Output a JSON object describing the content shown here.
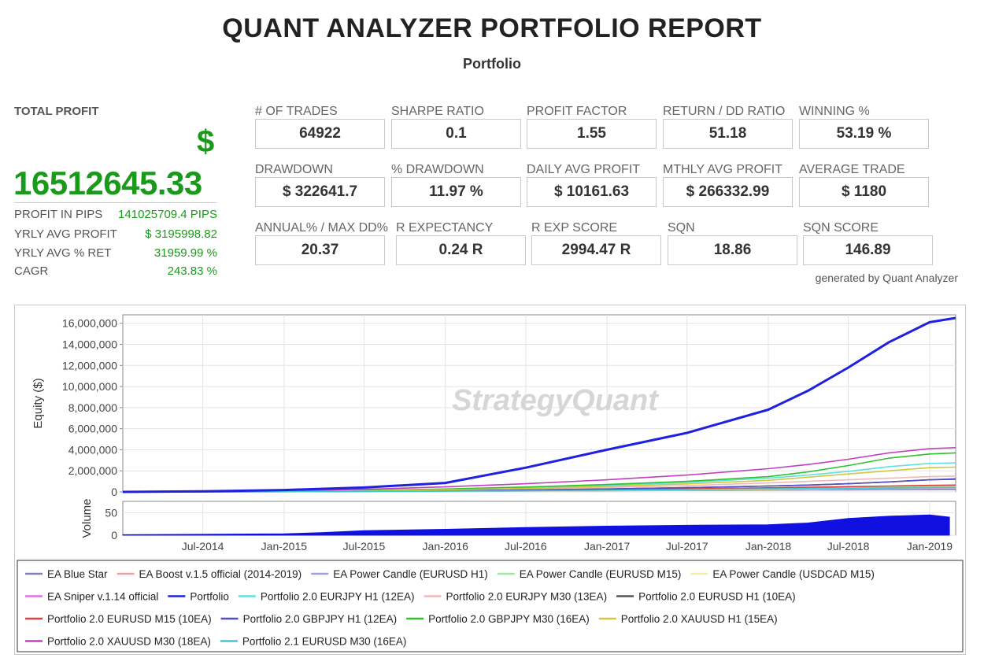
{
  "header": {
    "title": "QUANT ANALYZER PORTFOLIO REPORT",
    "subtitle": "Portfolio"
  },
  "total_profit": {
    "label": "TOTAL PROFIT",
    "currency_symbol": "$",
    "value": "16512645.33",
    "rows": [
      {
        "label": "PROFIT IN PIPS",
        "value": "141025709.4 PIPS"
      },
      {
        "label": "YRLY AVG PROFIT",
        "value": "$ 3195998.82"
      },
      {
        "label": "YRLY AVG % RET",
        "value": "31959.99 %"
      },
      {
        "label": "CAGR",
        "value": "243.83 %"
      }
    ]
  },
  "metrics": [
    {
      "label": "# OF TRADES",
      "value": "64922"
    },
    {
      "label": "SHARPE RATIO",
      "value": "0.1"
    },
    {
      "label": "PROFIT FACTOR",
      "value": "1.55"
    },
    {
      "label": "RETURN / DD RATIO",
      "value": "51.18"
    },
    {
      "label": "WINNING %",
      "value": "53.19 %"
    },
    {
      "label": "DRAWDOWN",
      "value": "$ 322641.7"
    },
    {
      "label": "% DRAWDOWN",
      "value": "11.97 %"
    },
    {
      "label": "DAILY AVG PROFIT",
      "value": "$ 10161.63"
    },
    {
      "label": "MTHLY AVG PROFIT",
      "value": "$ 266332.99"
    },
    {
      "label": "AVERAGE TRADE",
      "value": "$ 1180"
    },
    {
      "label": "ANNUAL% / MAX DD%",
      "value": "20.37"
    },
    {
      "label": "R EXPECTANCY",
      "value": "0.24 R"
    },
    {
      "label": "R EXP SCORE",
      "value": "2994.47 R"
    },
    {
      "label": "SQN",
      "value": "18.86"
    },
    {
      "label": "SQN SCORE",
      "value": "146.89"
    }
  ],
  "generated_by": "generated by Quant Analyzer",
  "chart_data": {
    "type": "line",
    "watermark": "StrategyQuant",
    "ylabel": "Equity ($)",
    "ylim": [
      0,
      16800000
    ],
    "yticks": [
      0,
      2000000,
      4000000,
      6000000,
      8000000,
      10000000,
      12000000,
      14000000,
      16000000
    ],
    "ytick_labels": [
      "0",
      "2,000,000",
      "4,000,000",
      "6,000,000",
      "8,000,000",
      "10,000,000",
      "12,000,000",
      "14,000,000",
      "16,000,000"
    ],
    "xlim": [
      "2014-01-01",
      "2019-03-01"
    ],
    "xticks": [
      "2014-07-01",
      "2015-01-01",
      "2015-07-01",
      "2016-01-01",
      "2016-07-01",
      "2017-01-01",
      "2017-07-01",
      "2018-01-01",
      "2018-07-01",
      "2019-01-01"
    ],
    "xtick_labels": [
      "Jul-2014",
      "Jan-2015",
      "Jul-2015",
      "Jan-2016",
      "Jul-2016",
      "Jan-2017",
      "Jul-2017",
      "Jan-2018",
      "Jul-2018",
      "Jan-2019"
    ],
    "x": [
      "2014-01-01",
      "2014-07-01",
      "2015-01-01",
      "2015-07-01",
      "2016-01-01",
      "2016-07-01",
      "2017-01-01",
      "2017-07-01",
      "2018-01-01",
      "2018-04-01",
      "2018-07-01",
      "2018-10-01",
      "2019-01-01",
      "2019-03-01"
    ],
    "grid": true,
    "legend_position": "bottom",
    "series": [
      {
        "name": "EA Blue Star",
        "color": "#8080c0",
        "values": [
          0,
          5000,
          15000,
          30000,
          50000,
          80000,
          110000,
          140000,
          170000,
          185000,
          200000,
          215000,
          230000,
          240000
        ]
      },
      {
        "name": "EA Boost v.1.5 official (2014-2019)",
        "color": "#f0a0a0",
        "values": [
          0,
          10000,
          30000,
          60000,
          100000,
          150000,
          210000,
          280000,
          360000,
          400000,
          440000,
          480000,
          520000,
          540000
        ]
      },
      {
        "name": "EA Power Candle (EURUSD H1)",
        "color": "#a0a0e0",
        "values": [
          0,
          8000,
          20000,
          40000,
          70000,
          110000,
          160000,
          220000,
          290000,
          330000,
          370000,
          410000,
          450000,
          470000
        ]
      },
      {
        "name": "EA Power Candle (EURUSD M15)",
        "color": "#a0e8a0",
        "values": [
          0,
          10000,
          25000,
          50000,
          90000,
          140000,
          200000,
          270000,
          350000,
          390000,
          430000,
          470000,
          510000,
          530000
        ]
      },
      {
        "name": "EA Power Candle (USDCAD M15)",
        "color": "#f0f0a0",
        "values": [
          0,
          6000,
          15000,
          30000,
          55000,
          90000,
          130000,
          180000,
          240000,
          270000,
          300000,
          330000,
          360000,
          380000
        ]
      },
      {
        "name": "EA Sniper v.1.14 official",
        "color": "#e070e0",
        "values": [
          0,
          10000,
          30000,
          60000,
          100000,
          150000,
          200000,
          250000,
          300000,
          320000,
          340000,
          360000,
          380000,
          390000
        ]
      },
      {
        "name": "Portfolio",
        "color": "#2020e0",
        "values": [
          0,
          60000,
          180000,
          420000,
          850000,
          2300000,
          4000000,
          5600000,
          7800000,
          9600000,
          11800000,
          14200000,
          16100000,
          16500000
        ]
      },
      {
        "name": "Portfolio 2.0 EURJPY H1 (12EA)",
        "color": "#60e0e0",
        "values": [
          0,
          20000,
          60000,
          130000,
          250000,
          400000,
          620000,
          900000,
          1300000,
          1600000,
          1950000,
          2400000,
          2700000,
          2750000
        ]
      },
      {
        "name": "Portfolio 2.0 EURJPY M30 (13EA)",
        "color": "#f0b8b8",
        "values": [
          0,
          15000,
          40000,
          90000,
          170000,
          280000,
          420000,
          600000,
          850000,
          1000000,
          1150000,
          1300000,
          1450000,
          1500000
        ]
      },
      {
        "name": "Portfolio 2.0 EURUSD H1 (10EA)",
        "color": "#555555",
        "values": [
          0,
          10000,
          30000,
          60000,
          110000,
          180000,
          280000,
          400000,
          560000,
          650000,
          780000,
          950000,
          1150000,
          1200000
        ]
      },
      {
        "name": "Portfolio 2.0 EURUSD M15 (10EA)",
        "color": "#e04040",
        "values": [
          0,
          10000,
          25000,
          50000,
          90000,
          140000,
          210000,
          290000,
          390000,
          440000,
          500000,
          560000,
          620000,
          650000
        ]
      },
      {
        "name": "Portfolio 2.0 GBPJPY H1 (12EA)",
        "color": "#5050c8",
        "values": [
          0,
          10000,
          30000,
          60000,
          110000,
          180000,
          280000,
          400000,
          560000,
          650000,
          780000,
          950000,
          1150000,
          1250000
        ]
      },
      {
        "name": "Portfolio 2.0 GBPJPY M30 (16EA)",
        "color": "#30c030",
        "values": [
          0,
          20000,
          60000,
          140000,
          280000,
          460000,
          700000,
          1000000,
          1450000,
          1900000,
          2500000,
          3200000,
          3600000,
          3700000
        ]
      },
      {
        "name": "Portfolio 2.0 XAUUSD H1 (15EA)",
        "color": "#d0c840",
        "values": [
          0,
          15000,
          45000,
          100000,
          200000,
          340000,
          520000,
          760000,
          1100000,
          1400000,
          1700000,
          2000000,
          2300000,
          2350000
        ]
      },
      {
        "name": "Portfolio 2.0 XAUUSD M30 (18EA)",
        "color": "#c040c0",
        "values": [
          0,
          30000,
          100000,
          250000,
          480000,
          780000,
          1150000,
          1600000,
          2200000,
          2600000,
          3100000,
          3700000,
          4100000,
          4200000
        ]
      },
      {
        "name": "Portfolio 2.1 EURUSD M30 (16EA)",
        "color": "#40c8d0",
        "values": [
          0,
          8000,
          20000,
          40000,
          70000,
          110000,
          160000,
          220000,
          290000,
          320000,
          350000,
          380000,
          410000,
          420000
        ]
      }
    ],
    "volume": {
      "ylabel": "Volume",
      "ylim": [
        0,
        75
      ],
      "yticks": [
        0,
        50
      ],
      "ytick_labels": [
        "0",
        "50"
      ],
      "color": "#1010e0",
      "x": [
        "2014-01-01",
        "2014-07-01",
        "2015-01-01",
        "2015-04-01",
        "2015-07-01",
        "2016-01-01",
        "2016-07-01",
        "2017-01-01",
        "2017-07-01",
        "2018-01-01",
        "2018-04-01",
        "2018-07-01",
        "2018-10-01",
        "2019-01-01",
        "2019-02-15"
      ],
      "values": [
        1,
        2,
        3,
        6,
        10,
        13,
        17,
        20,
        22,
        23,
        27,
        37,
        42,
        45,
        40
      ]
    }
  }
}
